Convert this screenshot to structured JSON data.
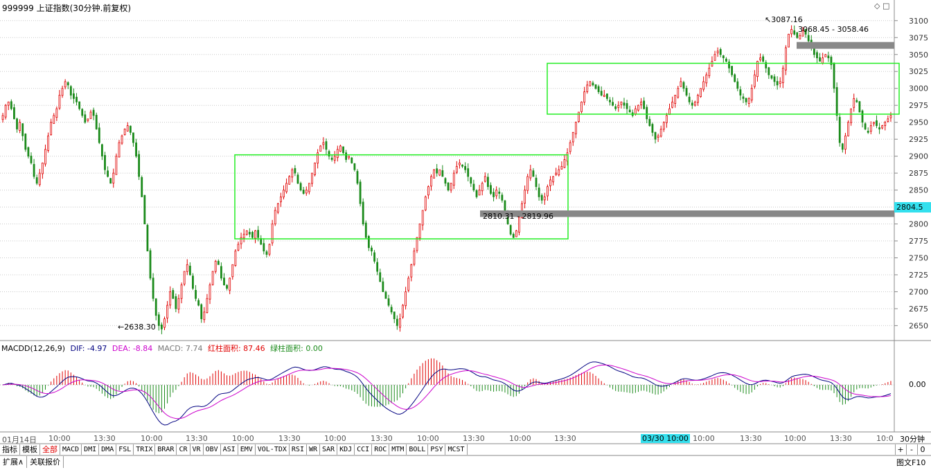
{
  "header": {
    "title": "999999 上证指数(30分钟.前复权)",
    "icons": [
      "diamond-icon",
      "square-icon"
    ]
  },
  "price_axis": {
    "ticks": [
      "3100",
      "3075",
      "3050",
      "3025",
      "3000",
      "2975",
      "2950",
      "2925",
      "2900",
      "2875",
      "2850",
      "2825",
      "2800",
      "2775",
      "2750",
      "2725",
      "2700",
      "2675",
      "2650"
    ],
    "current_price": "2804.5",
    "current_price_color": "#00ffff"
  },
  "annotations": {
    "high_label": "3087.16",
    "low_label": "2638.30",
    "gap_upper": "3068.45 - 3058.46",
    "gap_lower": "2810.31 - 2819.96"
  },
  "macd": {
    "name": "MACDD(12,26,9)",
    "dif": "DIF: -4.97",
    "dea": "DEA: -8.84",
    "macd": "MACD: 7.74",
    "red_area": "红柱面积: 87.46",
    "green_area": "绿柱面积: 0.00",
    "zero_label": "0.00",
    "colors": {
      "dif": "#000080",
      "dea": "#cc00cc",
      "macd": "#999999",
      "red": "#e00000",
      "green": "#1a8a1a"
    }
  },
  "time_axis": {
    "labels": [
      "01月14日",
      "10:00",
      "13:30",
      "10:00",
      "13:30",
      "10:00",
      "13:30",
      "10:00",
      "13:30",
      "10:00",
      "13:30",
      "10:00",
      "13:30",
      "03/30 10:00",
      "10:00",
      "13:30",
      "10:00",
      "13:30",
      "10:0"
    ],
    "highlight_index": 13,
    "period": "30分钟"
  },
  "tabs": [
    "指标",
    "模板",
    "全部",
    "MACD",
    "DMI",
    "DMA",
    "FSL",
    "TRIX",
    "BRAR",
    "CR",
    "VR",
    "OBV",
    "ASI",
    "EMV",
    "VOL-TDX",
    "RSI",
    "WR",
    "SAR",
    "KDJ",
    "CCI",
    "ROC",
    "MTM",
    "BOLL",
    "PSY",
    "MCST"
  ],
  "active_tab": "全部",
  "bottom": {
    "expand": "扩展∧",
    "related": "关联报价",
    "f10": "图文F10"
  },
  "controls": {
    "plus": "+",
    "minus": "-",
    "zero": "0"
  },
  "chart_data": {
    "type": "candlestick",
    "ylim": [
      2630,
      3110
    ],
    "closes": [
      2960,
      2975,
      2980,
      2970,
      2955,
      2940,
      2950,
      2930,
      2910,
      2900,
      2890,
      2870,
      2860,
      2875,
      2890,
      2910,
      2930,
      2950,
      2960,
      2970,
      2990,
      3000,
      3010,
      3005,
      2990,
      2985,
      2980,
      2970,
      2960,
      2950,
      2955,
      2965,
      2960,
      2940,
      2920,
      2900,
      2880,
      2870,
      2860,
      2875,
      2900,
      2920,
      2930,
      2940,
      2945,
      2935,
      2920,
      2900,
      2870,
      2840,
      2800,
      2760,
      2720,
      2690,
      2665,
      2650,
      2645,
      2660,
      2680,
      2700,
      2690,
      2675,
      2690,
      2710,
      2730,
      2740,
      2725,
      2705,
      2690,
      2680,
      2660,
      2670,
      2690,
      2710,
      2730,
      2745,
      2740,
      2720,
      2710,
      2705,
      2720,
      2740,
      2760,
      2770,
      2780,
      2785,
      2790,
      2785,
      2780,
      2790,
      2780,
      2770,
      2760,
      2755,
      2770,
      2800,
      2820,
      2830,
      2840,
      2850,
      2860,
      2870,
      2880,
      2875,
      2860,
      2850,
      2845,
      2850,
      2860,
      2875,
      2890,
      2905,
      2915,
      2920,
      2910,
      2900,
      2895,
      2900,
      2910,
      2915,
      2905,
      2895,
      2900,
      2890,
      2880,
      2860,
      2830,
      2800,
      2780,
      2765,
      2760,
      2745,
      2730,
      2715,
      2700,
      2690,
      2680,
      2670,
      2660,
      2650,
      2660,
      2680,
      2700,
      2720,
      2740,
      2760,
      2780,
      2800,
      2820,
      2840,
      2855,
      2870,
      2880,
      2875,
      2880,
      2870,
      2860,
      2850,
      2860,
      2875,
      2885,
      2890,
      2885,
      2880,
      2870,
      2860,
      2850,
      2840,
      2850,
      2860,
      2870,
      2855,
      2845,
      2840,
      2850,
      2845,
      2835,
      2820,
      2800,
      2785,
      2780,
      2790,
      2810,
      2830,
      2850,
      2870,
      2880,
      2870,
      2855,
      2840,
      2835,
      2840,
      2855,
      2865,
      2870,
      2875,
      2880,
      2885,
      2895,
      2905,
      2920,
      2935,
      2950,
      2965,
      2980,
      2995,
      3005,
      3010,
      3005,
      3000,
      2995,
      2990,
      2990,
      2985,
      2980,
      2975,
      2970,
      2975,
      2980,
      2975,
      2970,
      2965,
      2960,
      2970,
      2975,
      2980,
      2970,
      2955,
      2945,
      2935,
      2925,
      2930,
      2940,
      2950,
      2960,
      2970,
      2980,
      2990,
      3000,
      3010,
      3000,
      2990,
      2980,
      2975,
      2980,
      2990,
      3000,
      3010,
      3020,
      3030,
      3040,
      3050,
      3055,
      3050,
      3045,
      3040,
      3030,
      3020,
      3010,
      3000,
      2990,
      2985,
      2980,
      2985,
      3000,
      3020,
      3040,
      3045,
      3040,
      3030,
      3020,
      3015,
      3010,
      3005,
      3010,
      3030,
      3060,
      3080,
      3087,
      3080,
      3075,
      3078,
      3085,
      3080,
      3070,
      3060,
      3050,
      3045,
      3040,
      3045,
      3050,
      3045,
      3035,
      3000,
      2960,
      2920,
      2910,
      2930,
      2950,
      2970,
      2985,
      2980,
      2965,
      2950,
      2940,
      2935,
      2945,
      2950,
      2945,
      2940,
      2945,
      2950,
      2955,
      2960
    ]
  }
}
